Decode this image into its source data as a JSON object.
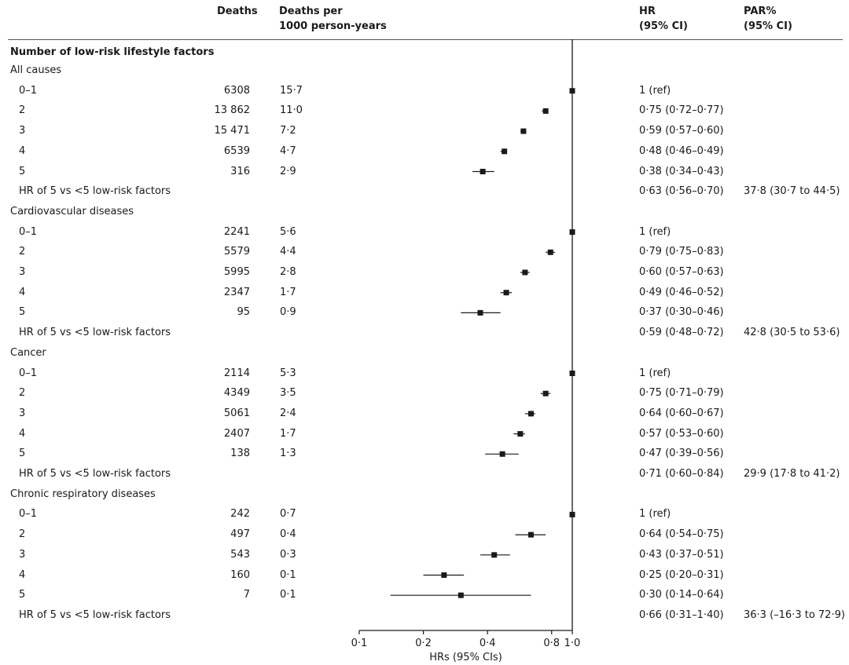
{
  "headers": {
    "deaths": "Deaths",
    "rate_line1": "Deaths per",
    "rate_line2": "1000 person-years",
    "hr_line1": "HR",
    "hr_line2": "(95% CI)",
    "par_line1": "PAR%",
    "par_line2": "(95% CI)"
  },
  "title": "Number of low-risk lifestyle factors",
  "groups": [
    {
      "name": "All causes",
      "rows": [
        {
          "label": "0–1",
          "deaths": "6308",
          "rate": "15·7",
          "hr_text": "1 (ref)",
          "hr": 1.0,
          "lo": 1.0,
          "hi": 1.0
        },
        {
          "label": "2",
          "deaths": "13 862",
          "rate": "11·0",
          "hr_text": "0·75 (0·72–0·77)",
          "hr": 0.75,
          "lo": 0.72,
          "hi": 0.77
        },
        {
          "label": "3",
          "deaths": "15 471",
          "rate": "7·2",
          "hr_text": "0·59 (0·57–0·60)",
          "hr": 0.59,
          "lo": 0.57,
          "hi": 0.6
        },
        {
          "label": "4",
          "deaths": "6539",
          "rate": "4·7",
          "hr_text": "0·48 (0·46–0·49)",
          "hr": 0.48,
          "lo": 0.46,
          "hi": 0.49
        },
        {
          "label": "5",
          "deaths": "316",
          "rate": "2·9",
          "hr_text": "0·38 (0·34–0·43)",
          "hr": 0.38,
          "lo": 0.34,
          "hi": 0.43
        }
      ],
      "summary": {
        "label": "HR of 5 vs <5 low-risk factors",
        "hr_text": "0·63 (0·56–0·70)",
        "par_text": "37·8 (30·7 to 44·5)"
      }
    },
    {
      "name": "Cardiovascular diseases",
      "rows": [
        {
          "label": "0–1",
          "deaths": "2241",
          "rate": "5·6",
          "hr_text": "1 (ref)",
          "hr": 1.0,
          "lo": 1.0,
          "hi": 1.0
        },
        {
          "label": "2",
          "deaths": "5579",
          "rate": "4·4",
          "hr_text": "0·79 (0·75–0·83)",
          "hr": 0.79,
          "lo": 0.75,
          "hi": 0.83
        },
        {
          "label": "3",
          "deaths": "5995",
          "rate": "2·8",
          "hr_text": "0·60 (0·57–0·63)",
          "hr": 0.6,
          "lo": 0.57,
          "hi": 0.63
        },
        {
          "label": "4",
          "deaths": "2347",
          "rate": "1·7",
          "hr_text": "0·49 (0·46–0·52)",
          "hr": 0.49,
          "lo": 0.46,
          "hi": 0.52
        },
        {
          "label": "5",
          "deaths": "95",
          "rate": "0·9",
          "hr_text": "0·37 (0·30–0·46)",
          "hr": 0.37,
          "lo": 0.3,
          "hi": 0.46
        }
      ],
      "summary": {
        "label": "HR of 5 vs <5 low-risk factors",
        "hr_text": "0·59 (0·48–0·72)",
        "par_text": "42·8 (30·5 to 53·6)"
      }
    },
    {
      "name": "Cancer",
      "rows": [
        {
          "label": "0–1",
          "deaths": "2114",
          "rate": "5·3",
          "hr_text": "1 (ref)",
          "hr": 1.0,
          "lo": 1.0,
          "hi": 1.0
        },
        {
          "label": "2",
          "deaths": "4349",
          "rate": "3·5",
          "hr_text": "0·75 (0·71–0·79)",
          "hr": 0.75,
          "lo": 0.71,
          "hi": 0.79
        },
        {
          "label": "3",
          "deaths": "5061",
          "rate": "2·4",
          "hr_text": "0·64 (0·60–0·67)",
          "hr": 0.64,
          "lo": 0.6,
          "hi": 0.67
        },
        {
          "label": "4",
          "deaths": "2407",
          "rate": "1·7",
          "hr_text": "0·57 (0·53–0·60)",
          "hr": 0.57,
          "lo": 0.53,
          "hi": 0.6
        },
        {
          "label": "5",
          "deaths": "138",
          "rate": "1·3",
          "hr_text": "0·47 (0·39–0·56)",
          "hr": 0.47,
          "lo": 0.39,
          "hi": 0.56
        }
      ],
      "summary": {
        "label": "HR of 5 vs <5 low-risk factors",
        "hr_text": "0·71 (0·60–0·84)",
        "par_text": "29·9 (17·8 to 41·2)"
      }
    },
    {
      "name": "Chronic respiratory diseases",
      "rows": [
        {
          "label": "0–1",
          "deaths": "242",
          "rate": "0·7",
          "hr_text": "1 (ref)",
          "hr": 1.0,
          "lo": 1.0,
          "hi": 1.0
        },
        {
          "label": "2",
          "deaths": "497",
          "rate": "0·4",
          "hr_text": "0·64 (0·54–0·75)",
          "hr": 0.64,
          "lo": 0.54,
          "hi": 0.75
        },
        {
          "label": "3",
          "deaths": "543",
          "rate": "0·3",
          "hr_text": "0·43 (0·37–0·51)",
          "hr": 0.43,
          "lo": 0.37,
          "hi": 0.51
        },
        {
          "label": "4",
          "deaths": "160",
          "rate": "0·1",
          "hr_text": "0·25 (0·20–0·31)",
          "hr": 0.25,
          "lo": 0.2,
          "hi": 0.31
        },
        {
          "label": "5",
          "deaths": "7",
          "rate": "0·1",
          "hr_text": "0·30 (0·14–0·64)",
          "hr": 0.3,
          "lo": 0.14,
          "hi": 0.64
        }
      ],
      "summary": {
        "label": "HR of 5 vs <5 low-risk factors",
        "hr_text": "0·66 (0·31–1·40)",
        "par_text": "36·3 (–16·3 to 72·9)"
      }
    }
  ],
  "chart_data": {
    "type": "scatter",
    "xlabel": "HRs (95% CIs)",
    "xscale": "log",
    "xlim": [
      0.1,
      1.0
    ],
    "xticks": [
      0.1,
      0.2,
      0.4,
      0.8,
      1.0
    ],
    "xtick_labels": [
      "0·1",
      "0·2",
      "0·4",
      "0·8",
      "1·0"
    ],
    "reference_line": 1.0,
    "marker_color": "#1a1a1a"
  }
}
